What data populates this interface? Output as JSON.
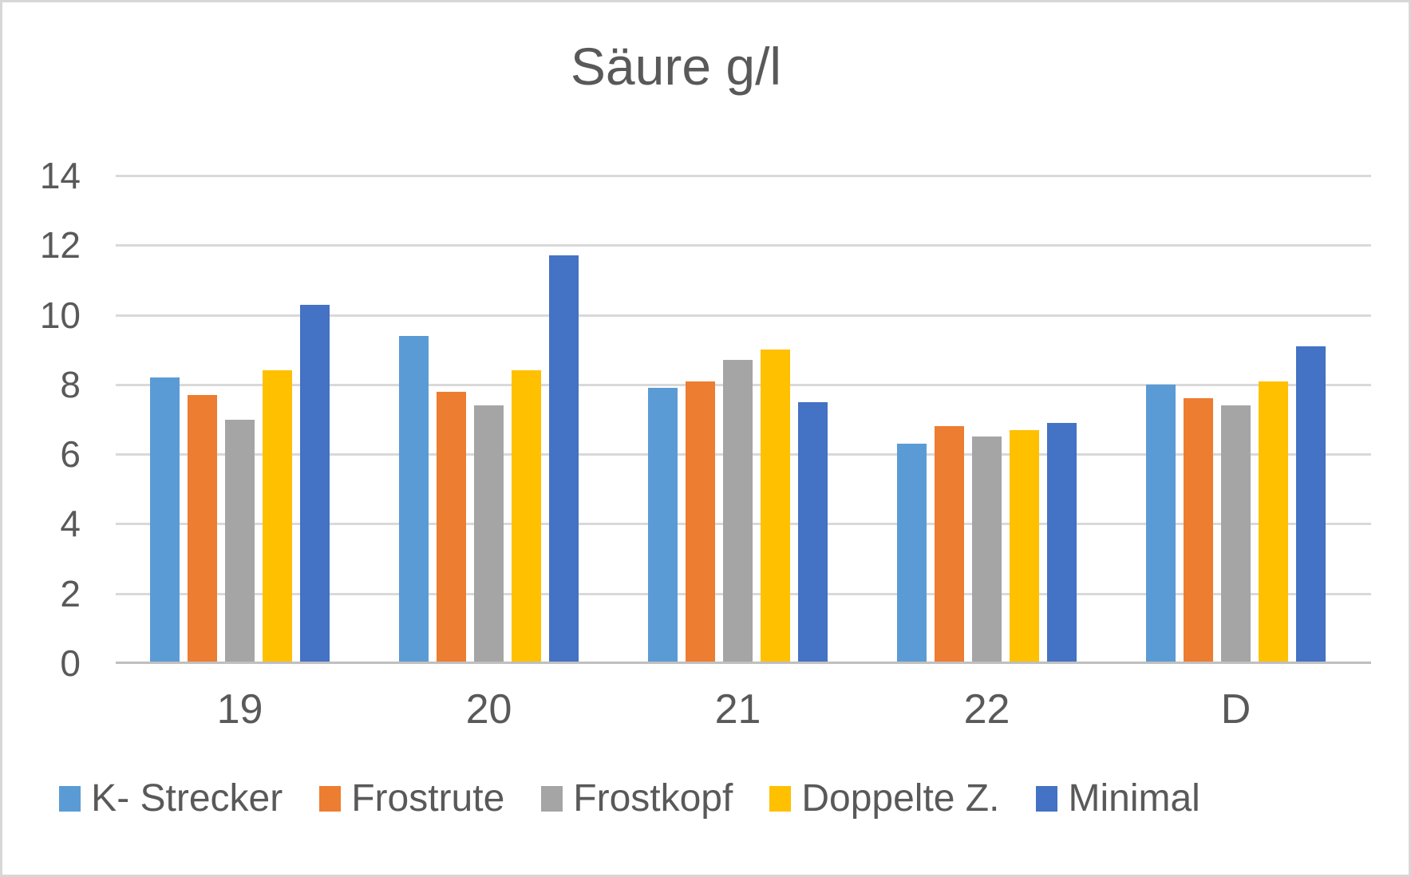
{
  "chart_data": {
    "type": "bar",
    "title": "Säure g/l",
    "categories": [
      "19",
      "20",
      "21",
      "22",
      "D"
    ],
    "series": [
      {
        "name": "K- Strecker",
        "color": "#5B9BD5",
        "values": [
          8.2,
          9.4,
          7.9,
          6.3,
          8.0
        ]
      },
      {
        "name": "Frostrute",
        "color": "#ED7D31",
        "values": [
          7.7,
          7.8,
          8.1,
          6.8,
          7.6
        ]
      },
      {
        "name": "Frostkopf",
        "color": "#A5A5A5",
        "values": [
          7.0,
          7.4,
          8.7,
          6.5,
          7.4
        ]
      },
      {
        "name": "Doppelte Z.",
        "color": "#FFC000",
        "values": [
          8.4,
          8.4,
          9.0,
          6.7,
          8.1
        ]
      },
      {
        "name": "Minimal",
        "color": "#4472C4",
        "values": [
          10.3,
          11.7,
          7.5,
          6.9,
          9.1
        ]
      }
    ],
    "xlabel": "",
    "ylabel": "",
    "ylim": [
      0,
      14
    ],
    "yticks": [
      0,
      2,
      4,
      6,
      8,
      10,
      12,
      14
    ],
    "grid": true,
    "legend_position": "bottom"
  },
  "styles": {
    "text_color": "#595959",
    "gridline_color": "#d9d9d9",
    "axis_line_color": "#bfbfbf",
    "background": "#ffffff",
    "border_color": "#d7d7d7"
  }
}
